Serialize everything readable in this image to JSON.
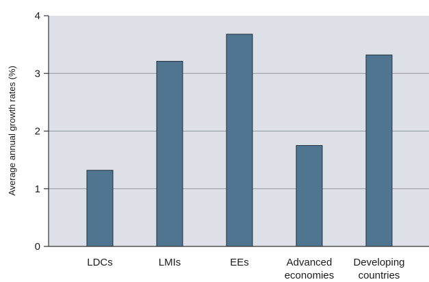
{
  "chart_data": {
    "type": "bar",
    "categories": [
      [
        "LDCs"
      ],
      [
        "LMIs"
      ],
      [
        "EEs"
      ],
      [
        "Advanced",
        "economies"
      ],
      [
        "Developing",
        "countries"
      ]
    ],
    "values": [
      1.32,
      3.21,
      3.68,
      1.75,
      3.32
    ],
    "title": "",
    "xlabel": "",
    "ylabel": "Average annual growth rates (%)",
    "ylim": [
      0,
      4
    ],
    "yticks": [
      0,
      1,
      2,
      3,
      4
    ],
    "grid": true,
    "colors": {
      "bar": "#4f7591",
      "bar_stroke": "#1f2f3c",
      "plot_background": "#dde1e7",
      "gridline": "#8f959c",
      "axis": "#333333"
    }
  }
}
